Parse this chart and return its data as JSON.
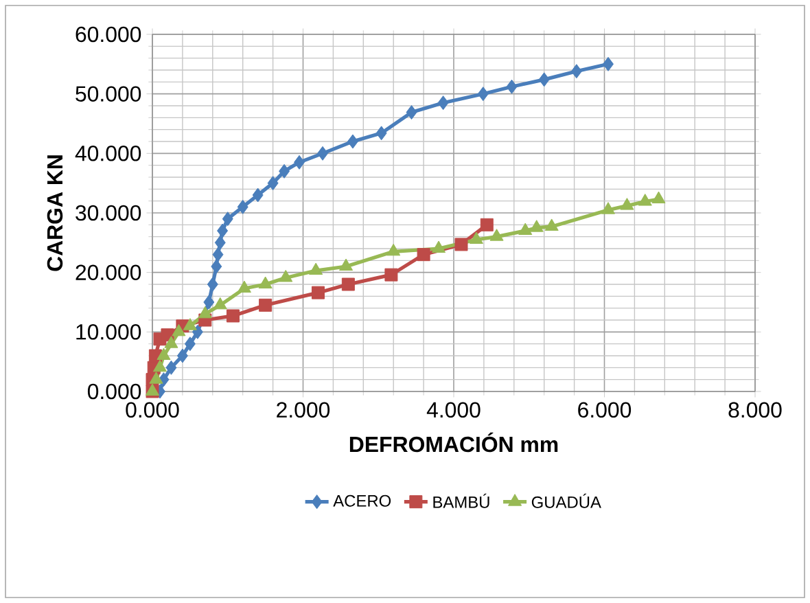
{
  "chart_data": {
    "type": "line",
    "xlabel": "DEFROMACIÓN mm",
    "ylabel": "CARGA KN",
    "xlim": [
      0,
      8
    ],
    "ylim": [
      0,
      60
    ],
    "xticks": [
      {
        "value": 0,
        "label": "0.000"
      },
      {
        "value": 2,
        "label": "2.000"
      },
      {
        "value": 4,
        "label": "4.000"
      },
      {
        "value": 6,
        "label": "6.000"
      },
      {
        "value": 8,
        "label": "8.000"
      }
    ],
    "yticks": [
      {
        "value": 0,
        "label": "0.000"
      },
      {
        "value": 10,
        "label": "10.000"
      },
      {
        "value": 20,
        "label": "20.000"
      },
      {
        "value": 30,
        "label": "30.000"
      },
      {
        "value": 40,
        "label": "40.000"
      },
      {
        "value": 50,
        "label": "50.000"
      },
      {
        "value": 60,
        "label": "60.000"
      }
    ],
    "grid": true,
    "legend": "bottom",
    "series": [
      {
        "name": "ACERO",
        "color": "#4a7ebb",
        "marker": "diamond",
        "x": [
          0.1,
          0.15,
          0.25,
          0.4,
          0.5,
          0.6,
          0.7,
          0.75,
          0.8,
          0.85,
          0.87,
          0.9,
          0.93,
          1.0,
          1.2,
          1.4,
          1.6,
          1.75,
          1.95,
          2.26,
          2.66,
          3.04,
          3.44,
          3.86,
          4.39,
          4.77,
          5.2,
          5.63,
          6.05
        ],
        "values": [
          0,
          2,
          4,
          6,
          8,
          10,
          null,
          15,
          18,
          21,
          23,
          25,
          27,
          29,
          31,
          33,
          35,
          37,
          38.5,
          40,
          42,
          43.4,
          46.9,
          48.5,
          50,
          51.2,
          52.4,
          53.8,
          55
        ]
      },
      {
        "name": "BAMBÚ",
        "color": "#be4b48",
        "marker": "square",
        "x": [
          0,
          0,
          0.02,
          0.04,
          0.1,
          0.2,
          0.4,
          0.7,
          1.07,
          1.5,
          2.2,
          2.6,
          3.17,
          3.6,
          4.1,
          4.44
        ],
        "values": [
          0,
          2,
          4,
          6,
          8.8,
          9.5,
          11,
          12,
          12.7,
          14.5,
          16.6,
          18,
          19.6,
          23,
          24.7,
          28
        ]
      },
      {
        "name": "GUADÚA",
        "color": "#98b954",
        "marker": "triangle",
        "x": [
          0,
          0.05,
          0.1,
          0.15,
          0.25,
          0.35,
          0.5,
          0.7,
          0.9,
          1.22,
          1.5,
          1.77,
          2.17,
          2.57,
          3.2,
          3.8,
          4.3,
          4.57,
          4.95,
          5.1,
          5.3,
          6.05,
          6.3,
          6.54,
          6.72
        ],
        "values": [
          0,
          2,
          4,
          6,
          8,
          10,
          11,
          13,
          14.5,
          17.3,
          18,
          19.1,
          20.3,
          21,
          23.5,
          24,
          25.5,
          26,
          27,
          27.5,
          27.7,
          30.5,
          31.2,
          31.9,
          32.3
        ]
      }
    ]
  }
}
